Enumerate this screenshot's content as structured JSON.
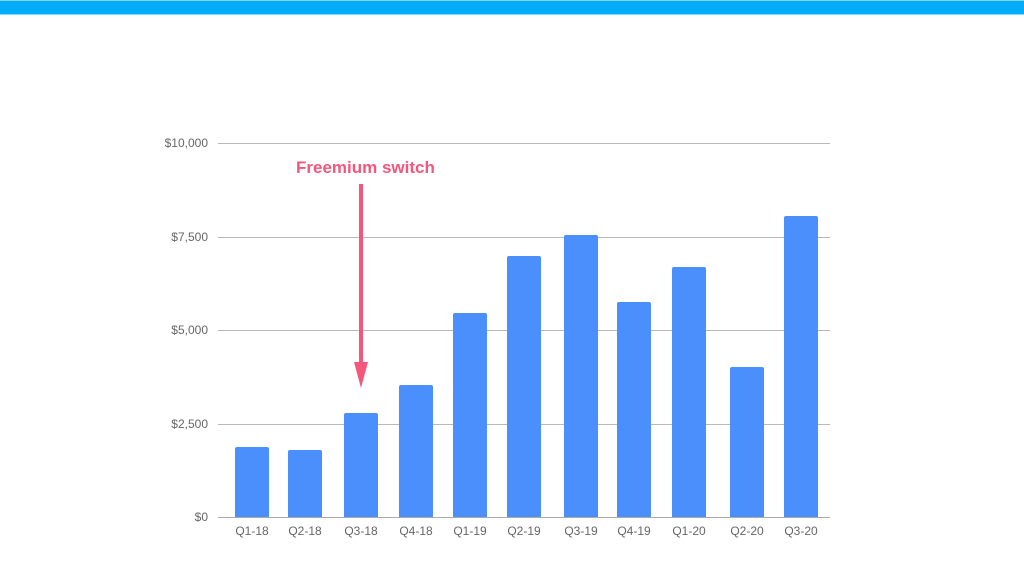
{
  "colors": {
    "top_bar": "#03adf9",
    "bar": "#4a8ffc",
    "annotation": "#f5567c",
    "gridline": "#b9b9b9",
    "tick_text": "#666666"
  },
  "chart_data": {
    "type": "bar",
    "title": "",
    "xlabel": "",
    "ylabel": "",
    "categories": [
      "Q1-18",
      "Q2-18",
      "Q3-18",
      "Q4-18",
      "Q1-19",
      "Q2-19",
      "Q3-19",
      "Q4-19",
      "Q1-20",
      "Q2-20",
      "Q3-20"
    ],
    "values": [
      1870,
      1800,
      2780,
      3530,
      5450,
      6980,
      7540,
      5750,
      6680,
      4010,
      8050
    ],
    "ylim": [
      0,
      10000
    ],
    "yticks": [
      0,
      2500,
      5000,
      7500,
      10000
    ],
    "ytick_labels": [
      "$0",
      "$2,500",
      "$5,000",
      "$7,500",
      "$10,000"
    ],
    "grid": true,
    "legend": null,
    "annotations": [
      {
        "text": "Freemium switch",
        "target_category": "Q3-18",
        "type": "arrow-down"
      }
    ]
  }
}
